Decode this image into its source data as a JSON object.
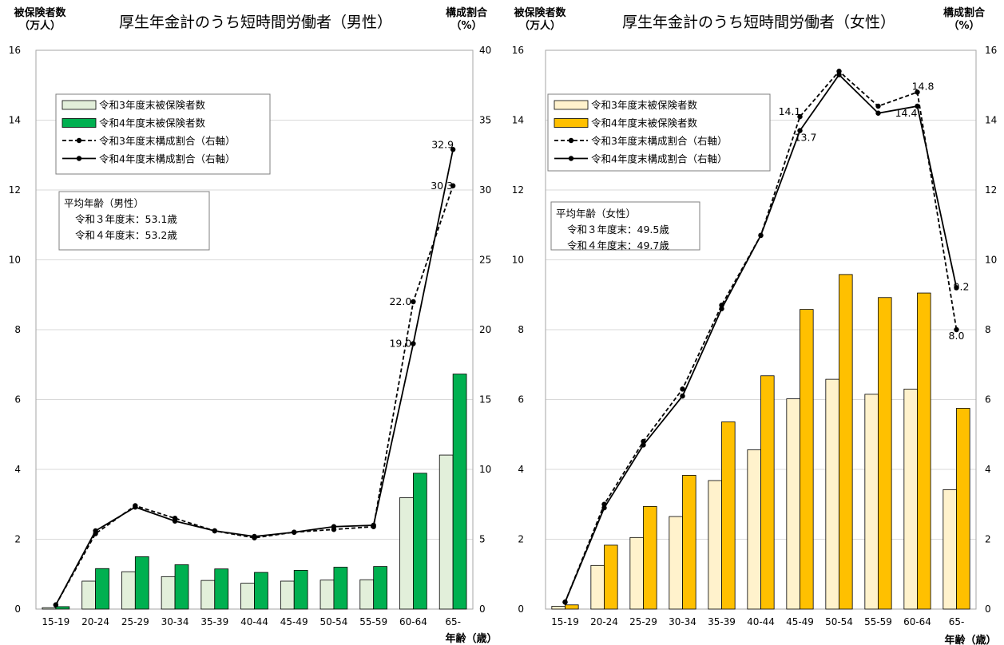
{
  "chart_data": [
    {
      "type": "bar",
      "title": "厚生年金計のうち短時間労働者（男性）",
      "ylabel_left": [
        "被保険者数",
        "（万人）"
      ],
      "ylabel_right": [
        "構成割合",
        "（%）"
      ],
      "xlabel": "年齢（歳）",
      "categories": [
        "15-19",
        "20-24",
        "25-29",
        "30-34",
        "35-39",
        "40-44",
        "45-49",
        "50-54",
        "55-59",
        "60-64",
        "65-"
      ],
      "ylim_left": [
        0,
        16
      ],
      "ylim_right": [
        0,
        40
      ],
      "yticks_left": [
        "0",
        "2",
        "4",
        "6",
        "8",
        "10",
        "12",
        "14",
        "16"
      ],
      "yticks_right": [
        "0",
        "5",
        "10",
        "15",
        "20",
        "25",
        "30",
        "35",
        "40"
      ],
      "series": [
        {
          "name": "令和3年度末被保険者数",
          "kind": "bar",
          "axis": "left",
          "color": "#e2efda",
          "values": [
            0.04,
            0.8,
            1.07,
            0.93,
            0.82,
            0.74,
            0.8,
            0.83,
            0.84,
            3.19,
            4.41
          ]
        },
        {
          "name": "令和4年度末被保険者数",
          "kind": "bar",
          "axis": "left",
          "color": "#00b050",
          "values": [
            0.07,
            1.16,
            1.5,
            1.27,
            1.15,
            1.05,
            1.11,
            1.2,
            1.22,
            3.89,
            6.73
          ]
        },
        {
          "name": "令和3年度末構成割合（右軸）",
          "kind": "line",
          "style": "dashed",
          "axis": "right",
          "color": "#000000",
          "values": [
            0.3,
            5.4,
            7.4,
            6.5,
            5.6,
            5.1,
            5.5,
            5.7,
            5.9,
            22.0,
            30.3
          ]
        },
        {
          "name": "令和4年度末構成割合（右軸）",
          "kind": "line",
          "style": "solid",
          "axis": "right",
          "color": "#000000",
          "values": [
            0.3,
            5.6,
            7.3,
            6.3,
            5.6,
            5.2,
            5.5,
            5.9,
            6.0,
            19.0,
            32.9
          ]
        }
      ],
      "data_labels": [
        {
          "text": "22.0",
          "series": 2,
          "index": 9
        },
        {
          "text": "19.0",
          "series": 3,
          "index": 9
        },
        {
          "text": "30.3",
          "series": 2,
          "index": 10
        },
        {
          "text": "32.9",
          "series": 3,
          "index": 10
        }
      ],
      "annotation": [
        "平均年齢（男性）",
        "令和３年度末：53.1歳",
        "令和４年度末：53.2歳"
      ],
      "legend_position": "top-left",
      "grid": true
    },
    {
      "type": "bar",
      "title": "厚生年金計のうち短時間労働者（女性）",
      "ylabel_left": [
        "被保険者数",
        "（万人）"
      ],
      "ylabel_right": [
        "構成割合",
        "（%）"
      ],
      "xlabel": "年齢（歳）",
      "categories": [
        "15-19",
        "20-24",
        "25-29",
        "30-34",
        "35-39",
        "40-44",
        "45-49",
        "50-54",
        "55-59",
        "60-64",
        "65-"
      ],
      "ylim_left": [
        0,
        16
      ],
      "ylim_right": [
        0,
        16
      ],
      "yticks_left": [
        "0",
        "2",
        "4",
        "6",
        "8",
        "10",
        "12",
        "14",
        "16"
      ],
      "yticks_right": [
        "0",
        "2",
        "4",
        "6",
        "8",
        "10",
        "12",
        "14",
        "16"
      ],
      "series": [
        {
          "name": "令和3年度末被保険者数",
          "kind": "bar",
          "axis": "left",
          "color": "#fff2cc",
          "values": [
            0.08,
            1.25,
            2.05,
            2.65,
            3.68,
            4.56,
            6.02,
            6.58,
            6.15,
            6.3,
            3.42
          ]
        },
        {
          "name": "令和4年度末被保険者数",
          "kind": "bar",
          "axis": "left",
          "color": "#ffc000",
          "values": [
            0.12,
            1.83,
            2.94,
            3.83,
            5.36,
            6.68,
            8.58,
            9.58,
            8.92,
            9.05,
            5.75
          ]
        },
        {
          "name": "令和3年度末構成割合（右軸）",
          "kind": "line",
          "style": "dashed",
          "axis": "right",
          "color": "#000000",
          "values": [
            0.2,
            3.0,
            4.8,
            6.3,
            8.7,
            10.7,
            14.1,
            15.4,
            14.4,
            14.8,
            8.0
          ]
        },
        {
          "name": "令和4年度末構成割合（右軸）",
          "kind": "line",
          "style": "solid",
          "axis": "right",
          "color": "#000000",
          "values": [
            0.2,
            2.9,
            4.7,
            6.1,
            8.6,
            10.7,
            13.7,
            15.3,
            14.2,
            14.4,
            9.2
          ]
        }
      ],
      "data_labels": [
        {
          "text": "14.1",
          "series": 2,
          "index": 6
        },
        {
          "text": "13.7",
          "series": 3,
          "index": 6
        },
        {
          "text": "14.8",
          "series": 2,
          "index": 9
        },
        {
          "text": "14.4",
          "series": 3,
          "index": 9
        },
        {
          "text": "9.2",
          "series": 3,
          "index": 10
        },
        {
          "text": "8.0",
          "series": 2,
          "index": 10
        }
      ],
      "annotation": [
        "平均年齢（女性）",
        "令和３年度末：49.5歳",
        "令和４年度末：49.7歳"
      ],
      "legend_position": "top-left",
      "grid": true
    }
  ]
}
